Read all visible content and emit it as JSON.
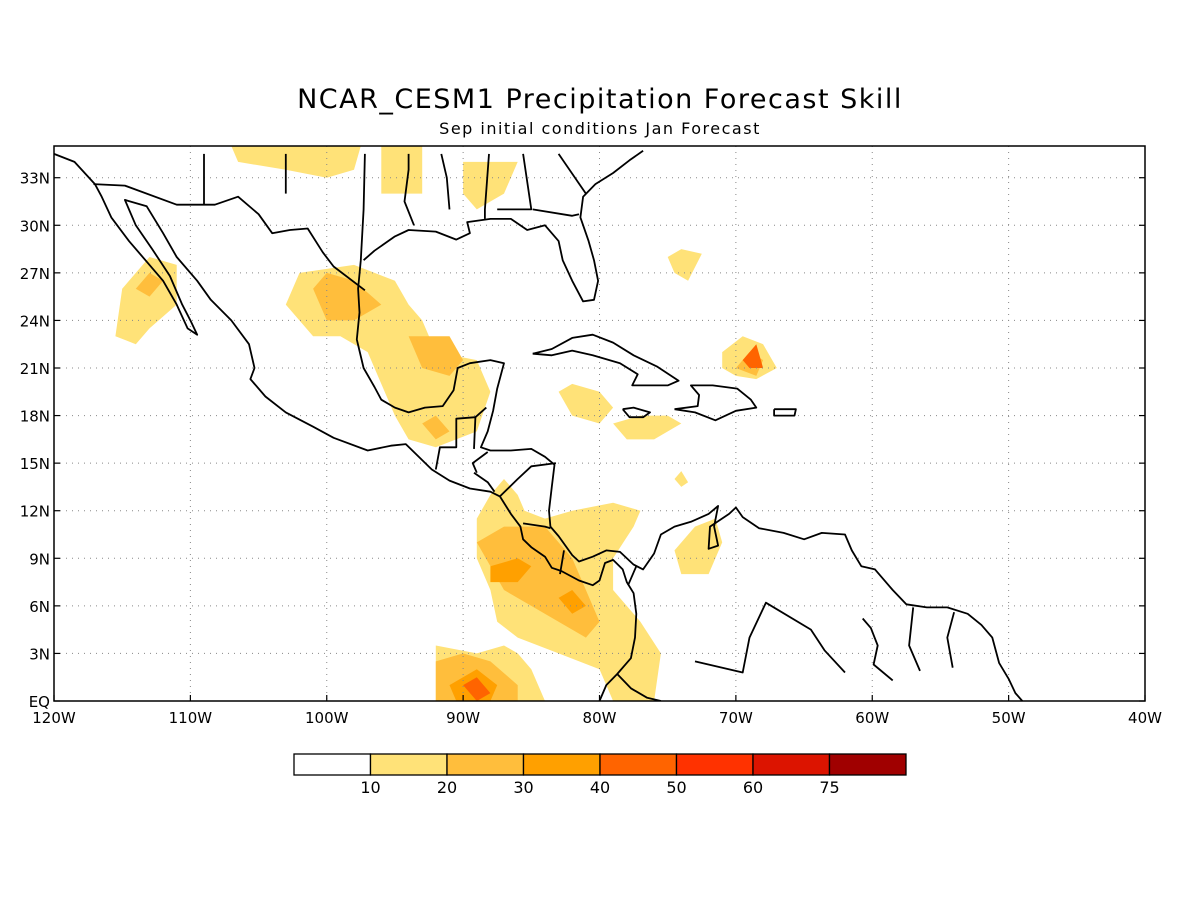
{
  "title": "NCAR_CESM1 Precipitation Forecast Skill",
  "subtitle": "Sep initial conditions  Jan Forecast",
  "map": {
    "lon_range": [
      -120,
      -40
    ],
    "lat_range": [
      0,
      35
    ],
    "gridlines": "dotted",
    "x_ticks": [
      {
        "lon": -120,
        "label": "120W"
      },
      {
        "lon": -110,
        "label": "110W"
      },
      {
        "lon": -100,
        "label": "100W"
      },
      {
        "lon": -90,
        "label": "90W"
      },
      {
        "lon": -80,
        "label": "80W"
      },
      {
        "lon": -70,
        "label": "70W"
      },
      {
        "lon": -60,
        "label": "60W"
      },
      {
        "lon": -50,
        "label": "50W"
      },
      {
        "lon": -40,
        "label": "40W"
      }
    ],
    "y_ticks": [
      {
        "lat": 0,
        "label": "EQ"
      },
      {
        "lat": 3,
        "label": "3N"
      },
      {
        "lat": 6,
        "label": "6N"
      },
      {
        "lat": 9,
        "label": "9N"
      },
      {
        "lat": 12,
        "label": "12N"
      },
      {
        "lat": 15,
        "label": "15N"
      },
      {
        "lat": 18,
        "label": "18N"
      },
      {
        "lat": 21,
        "label": "21N"
      },
      {
        "lat": 24,
        "label": "24N"
      },
      {
        "lat": 27,
        "label": "27N"
      },
      {
        "lat": 30,
        "label": "30N"
      },
      {
        "lat": 33,
        "label": "33N"
      }
    ]
  },
  "colorbar": {
    "labels": [
      "10",
      "20",
      "30",
      "40",
      "50",
      "60",
      "75"
    ],
    "colors": [
      "#ffffff",
      "#ffe278",
      "#ffbe3c",
      "#ffa000",
      "#ff6400",
      "#ff3200",
      "#dc1400",
      "#a00000"
    ]
  },
  "skill_regions": [
    {
      "level": 1,
      "points": [
        [
          -115.5,
          23
        ],
        [
          -115,
          26
        ],
        [
          -113,
          28
        ],
        [
          -111,
          27.5
        ],
        [
          -111,
          25
        ],
        [
          -113,
          23.5
        ],
        [
          -114,
          22.5
        ]
      ]
    },
    {
      "level": 1,
      "points": [
        [
          -103,
          25
        ],
        [
          -102,
          27
        ],
        [
          -98,
          27.5
        ],
        [
          -95,
          26.5
        ],
        [
          -94,
          25
        ],
        [
          -93,
          24
        ],
        [
          -92,
          22
        ],
        [
          -89,
          21.5
        ],
        [
          -88,
          19.5
        ],
        [
          -89,
          17
        ],
        [
          -92,
          16
        ],
        [
          -94,
          16.5
        ],
        [
          -95,
          18
        ],
        [
          -96,
          20
        ],
        [
          -97,
          22
        ],
        [
          -99,
          23
        ],
        [
          -101,
          23
        ]
      ]
    },
    {
      "level": 1,
      "points": [
        [
          -88,
          13
        ],
        [
          -89,
          11.5
        ],
        [
          -89,
          9
        ],
        [
          -88,
          7
        ],
        [
          -87.5,
          5
        ],
        [
          -86,
          4
        ],
        [
          -83,
          3
        ],
        [
          -80,
          2
        ],
        [
          -79,
          0
        ],
        [
          -76,
          0
        ],
        [
          -75.5,
          3
        ],
        [
          -77,
          5
        ],
        [
          -79,
          7
        ],
        [
          -79,
          9
        ],
        [
          -77.5,
          11
        ],
        [
          -77,
          12
        ],
        [
          -79,
          12.5
        ],
        [
          -82,
          12
        ],
        [
          -84,
          11.5
        ],
        [
          -85.5,
          12
        ],
        [
          -86,
          13
        ],
        [
          -87,
          14
        ]
      ]
    },
    {
      "level": 1,
      "points": [
        [
          -92,
          3.5
        ],
        [
          -92,
          0
        ],
        [
          -84,
          0
        ],
        [
          -85,
          2
        ],
        [
          -86,
          3
        ],
        [
          -87,
          3.5
        ],
        [
          -89,
          3
        ]
      ]
    },
    {
      "level": 1,
      "points": [
        [
          -74,
          8
        ],
        [
          -74.5,
          9.5
        ],
        [
          -73,
          11
        ],
        [
          -71.5,
          11.5
        ],
        [
          -71,
          10
        ],
        [
          -72,
          8
        ]
      ]
    },
    {
      "level": 1,
      "points": [
        [
          -83,
          19.5
        ],
        [
          -82,
          20
        ],
        [
          -80,
          19.5
        ],
        [
          -79,
          18.5
        ],
        [
          -80,
          17.5
        ],
        [
          -82,
          18
        ]
      ]
    },
    {
      "level": 1,
      "points": [
        [
          -79,
          17.5
        ],
        [
          -77,
          18
        ],
        [
          -75,
          18
        ],
        [
          -74,
          17.5
        ],
        [
          -76,
          16.5
        ],
        [
          -78,
          16.5
        ]
      ]
    },
    {
      "level": 1,
      "points": [
        [
          -74,
          14.5
        ],
        [
          -73.5,
          13.8
        ],
        [
          -74,
          13.5
        ],
        [
          -74.5,
          14
        ]
      ]
    },
    {
      "level": 1,
      "points": [
        [
          -75,
          28
        ],
        [
          -74,
          28.5
        ],
        [
          -72.5,
          28.2
        ],
        [
          -73.5,
          26.5
        ],
        [
          -74.5,
          27
        ]
      ]
    },
    {
      "level": 1,
      "points": [
        [
          -71,
          22
        ],
        [
          -69.5,
          23
        ],
        [
          -68,
          22.5
        ],
        [
          -67,
          21
        ],
        [
          -68.5,
          20.3
        ],
        [
          -70,
          20.5
        ],
        [
          -71,
          21
        ]
      ]
    },
    {
      "level": 1,
      "points": [
        [
          -107,
          35
        ],
        [
          -106.5,
          34
        ],
        [
          -103,
          33.5
        ],
        [
          -100,
          33
        ],
        [
          -98,
          33.5
        ],
        [
          -97.5,
          35
        ]
      ]
    },
    {
      "level": 1,
      "points": [
        [
          -96,
          35
        ],
        [
          -96,
          32
        ],
        [
          -93,
          32
        ],
        [
          -93,
          35
        ]
      ]
    },
    {
      "level": 1,
      "points": [
        [
          -105,
          35
        ],
        [
          -104.3,
          34
        ],
        [
          -103.7,
          35
        ]
      ]
    },
    {
      "level": 1,
      "points": [
        [
          -90,
          34
        ],
        [
          -90,
          32
        ],
        [
          -89,
          31
        ],
        [
          -87,
          32
        ],
        [
          -86,
          34
        ]
      ]
    },
    {
      "level": 2,
      "points": [
        [
          -113,
          27
        ],
        [
          -112,
          26.5
        ],
        [
          -113,
          25.5
        ],
        [
          -114,
          26
        ]
      ]
    },
    {
      "level": 2,
      "points": [
        [
          -101,
          26
        ],
        [
          -100,
          27
        ],
        [
          -98,
          26.5
        ],
        [
          -96,
          25
        ],
        [
          -98,
          24
        ],
        [
          -100,
          24
        ]
      ]
    },
    {
      "level": 2,
      "points": [
        [
          -94,
          23
        ],
        [
          -93,
          21
        ],
        [
          -91,
          20.5
        ],
        [
          -90,
          21.5
        ],
        [
          -91,
          23
        ]
      ]
    },
    {
      "level": 2,
      "points": [
        [
          -93,
          17.5
        ],
        [
          -92,
          16.5
        ],
        [
          -91,
          17
        ],
        [
          -92,
          18
        ]
      ]
    },
    {
      "level": 2,
      "points": [
        [
          -89,
          10
        ],
        [
          -87,
          11
        ],
        [
          -84,
          11
        ],
        [
          -82,
          9
        ],
        [
          -81,
          7
        ],
        [
          -80,
          5
        ],
        [
          -81,
          4
        ],
        [
          -83,
          5
        ],
        [
          -85,
          6
        ],
        [
          -87,
          7
        ]
      ]
    },
    {
      "level": 2,
      "points": [
        [
          -92,
          2.5
        ],
        [
          -90,
          3
        ],
        [
          -88,
          2.5
        ],
        [
          -86,
          1
        ],
        [
          -86,
          0
        ],
        [
          -92,
          0
        ]
      ]
    },
    {
      "level": 2,
      "points": [
        [
          -70,
          21
        ],
        [
          -69,
          22
        ],
        [
          -68,
          21.5
        ],
        [
          -68.5,
          20.5
        ]
      ]
    },
    {
      "level": 3,
      "points": [
        [
          -88,
          8.5
        ],
        [
          -86,
          9
        ],
        [
          -85,
          8.5
        ],
        [
          -86,
          7.5
        ],
        [
          -88,
          7.5
        ]
      ]
    },
    {
      "level": 3,
      "points": [
        [
          -83,
          6.5
        ],
        [
          -82,
          7
        ],
        [
          -81,
          6
        ],
        [
          -82,
          5.5
        ]
      ]
    },
    {
      "level": 3,
      "points": [
        [
          -91,
          1
        ],
        [
          -89,
          2
        ],
        [
          -87.5,
          1
        ],
        [
          -88,
          0
        ],
        [
          -90.5,
          0
        ]
      ]
    },
    {
      "level": 4,
      "points": [
        [
          -90,
          1
        ],
        [
          -89,
          1.5
        ],
        [
          -88,
          0.5
        ],
        [
          -89,
          0
        ]
      ]
    },
    {
      "level": 4,
      "points": [
        [
          -69.5,
          21.5
        ],
        [
          -68.5,
          22.5
        ],
        [
          -68,
          21
        ],
        [
          -69,
          21
        ]
      ]
    }
  ]
}
